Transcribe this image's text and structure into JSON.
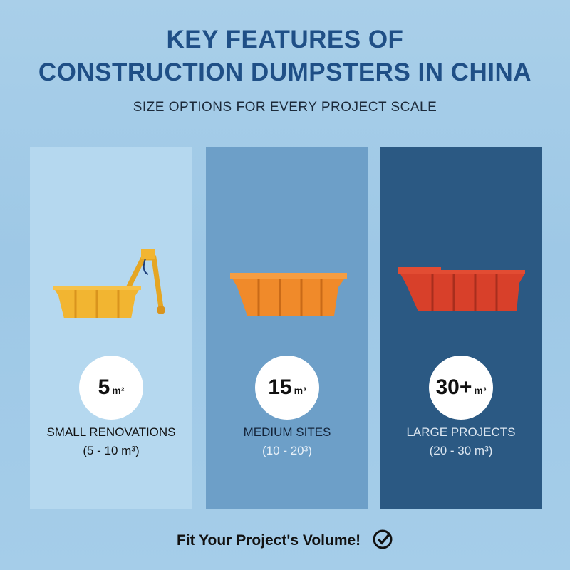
{
  "header": {
    "title_lines": [
      "KEY FEATURES OF",
      "CONSTRUCTION DUMPSTERS IN CHINA"
    ],
    "subtitle": "SIZE OPTIONS FOR EVERY PROJECT SCALE"
  },
  "cards": [
    {
      "size": "5",
      "unit": "m²",
      "label": "SMALL RENOVATIONS",
      "range": "(5 - 10 m³)"
    },
    {
      "size": "15",
      "unit": "m³",
      "label": "MEDIUM SITES",
      "range": "(10 - 20³)"
    },
    {
      "size": "30+",
      "unit": "m³",
      "label": "LARGE PROJECTS",
      "range": "(20 - 30 m³)"
    }
  ],
  "footer": {
    "text": "Fit Your Project's Volume!"
  }
}
